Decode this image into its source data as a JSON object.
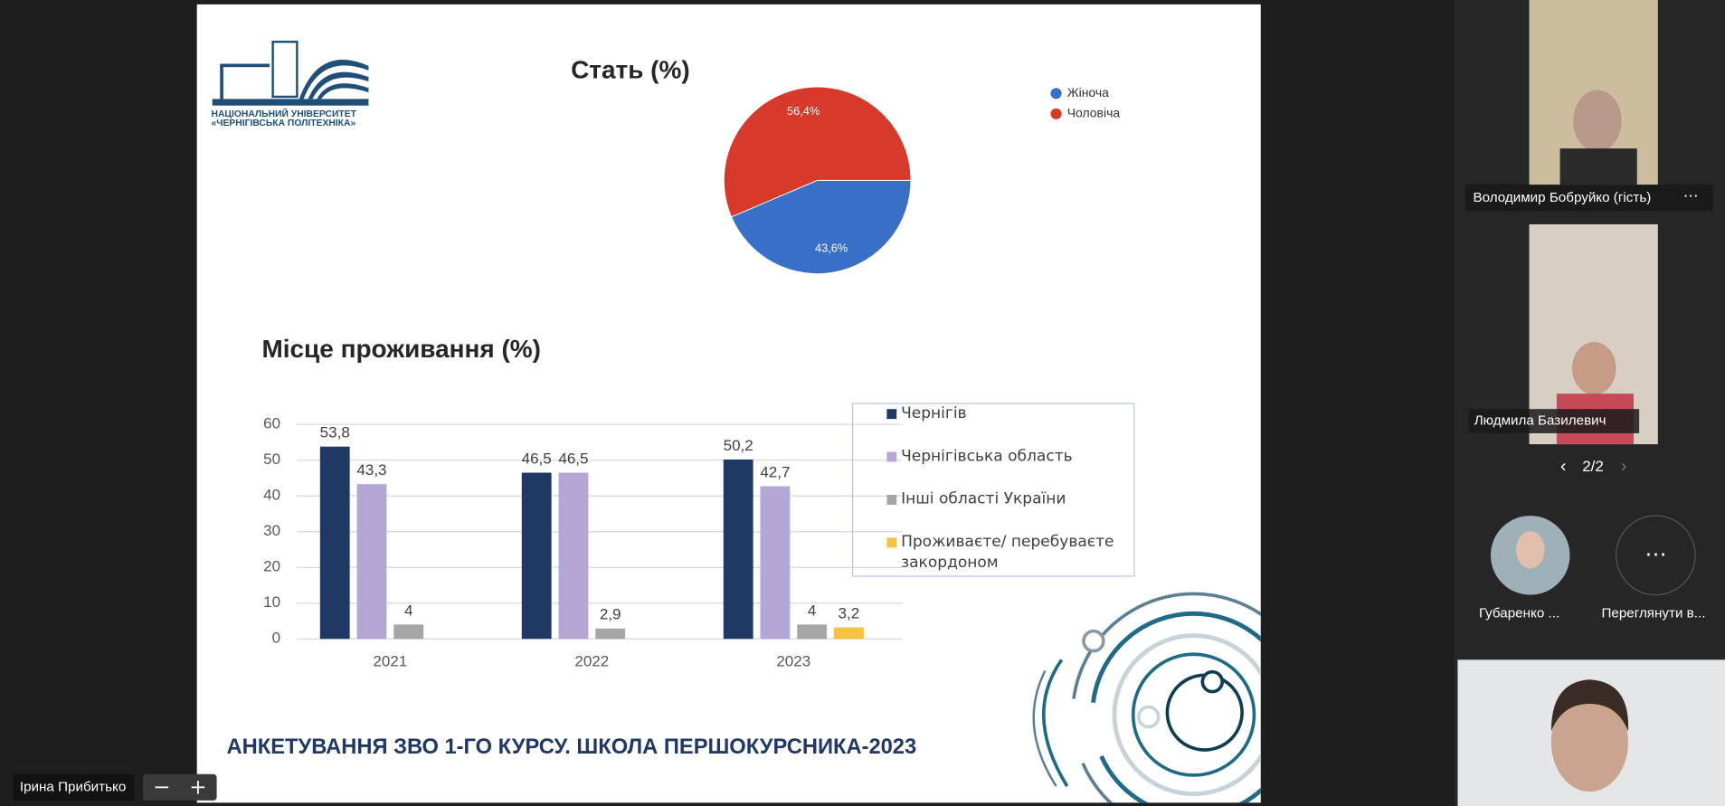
{
  "chart_data": [
    {
      "type": "pie",
      "title": "Стать (%)",
      "categories": [
        "Жіноча",
        "Чоловіча"
      ],
      "values": [
        43.6,
        56.4
      ],
      "value_labels": [
        "43,6%",
        "56,4%"
      ],
      "colors": [
        "#3a6fc8",
        "#d7392b"
      ]
    },
    {
      "type": "bar",
      "title": "Місце проживання (%)",
      "categories": [
        "2021",
        "2022",
        "2023"
      ],
      "series": [
        {
          "name": "Чернігів",
          "color": "#1f3864",
          "values": [
            53.8,
            46.5,
            50.2
          ],
          "value_labels": [
            "53,8",
            "46,5",
            "50,2"
          ]
        },
        {
          "name": "Чернігівська область",
          "color": "#b4a7d6",
          "values": [
            43.3,
            46.5,
            42.7
          ],
          "value_labels": [
            "43,3",
            "46,5",
            "42,7"
          ]
        },
        {
          "name": "Інші області України",
          "color": "#a6a6a6",
          "values": [
            4,
            2.9,
            4
          ],
          "value_labels": [
            "4",
            "2,9",
            "4"
          ]
        },
        {
          "name": "Проживаєте/ перебуваєте закордоном",
          "color": "#f5c242",
          "values": [
            null,
            null,
            3.2
          ],
          "value_labels": [
            null,
            null,
            "3,2"
          ]
        }
      ],
      "ylim": [
        0,
        60
      ],
      "yticks": [
        0,
        10,
        20,
        30,
        40,
        50,
        60
      ],
      "grid": true
    }
  ],
  "slide": {
    "logo_lines": [
      "НАЦІОНАЛЬНИЙ УНІВЕРСИТЕТ",
      "«ЧЕРНІГІВСЬКА ПОЛІТЕХНІКА»"
    ],
    "footer": "АНКЕТУВАННЯ ЗВО 1-ГО КУРСУ. ШКОЛА ПЕРШОКУРСНИКА-2023"
  },
  "participants": [
    "Володимир Бобруйко (гість)",
    "Людмила Базилевич",
    "Губаренко ...",
    "Переглянути в..."
  ],
  "pager": "2/2",
  "self_view": "Ірина Прибитько"
}
